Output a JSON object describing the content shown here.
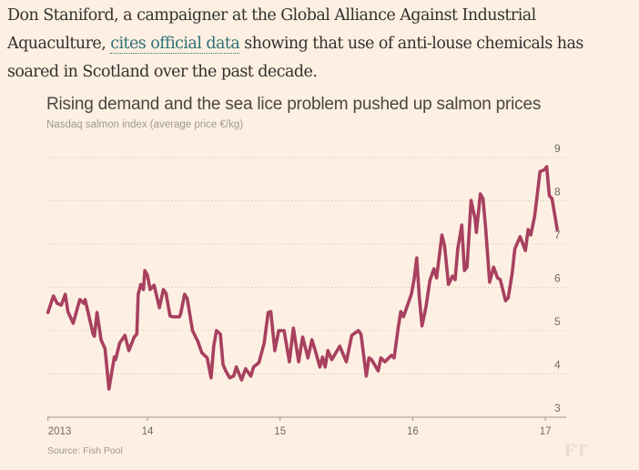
{
  "article": {
    "text_before": "Don Staniford, a campaigner at the Global Alliance Against Industrial Aquaculture, ",
    "link_text": "cites official data",
    "text_after": " showing that use of anti-louse chemicals has soared in Scotland over the past decade."
  },
  "colors": {
    "background": "#fdf0e2",
    "line": "#a8405f",
    "link": "#2e6e75",
    "grid": "#d9cfc3",
    "axis": "#9e958b"
  },
  "branding": {
    "logo": "FT"
  },
  "chart_data": {
    "type": "line",
    "title": "Rising demand and the sea lice problem pushed up salmon prices",
    "subtitle": "Nasdaq salmon index (average price €/kg)",
    "source": "Source: Fish Pool",
    "xlabel": "",
    "ylabel": "average price €/kg",
    "xlim": [
      2013.25,
      2017.16
    ],
    "ylim": [
      3,
      9
    ],
    "grid": true,
    "y_axis_side": "right",
    "y_ticks": [
      3,
      4,
      5,
      6,
      7,
      8,
      9
    ],
    "y_tick_labels": [
      "3",
      "4",
      "5",
      "6",
      "7",
      "8",
      "9"
    ],
    "x_ticks": [
      2013.25,
      2014,
      2015,
      2016,
      2017
    ],
    "x_tick_labels": [
      "2013",
      "14",
      "15",
      "16",
      "17"
    ],
    "series": [
      {
        "name": "Nasdaq salmon index",
        "x": [
          2013.25,
          2013.29,
          2013.32,
          2013.35,
          2013.38,
          2013.4,
          2013.44,
          2013.49,
          2013.52,
          2013.53,
          2013.59,
          2013.6,
          2013.62,
          2013.65,
          2013.68,
          2013.71,
          2013.75,
          2013.76,
          2013.79,
          2013.83,
          2013.86,
          2013.9,
          2013.92,
          2013.93,
          2013.95,
          2013.97,
          2013.98,
          2014.0,
          2014.02,
          2014.05,
          2014.09,
          2014.12,
          2014.14,
          2014.17,
          2014.19,
          2014.24,
          2014.25,
          2014.28,
          2014.3,
          2014.34,
          2014.38,
          2014.41,
          2014.45,
          2014.48,
          2014.5,
          2014.52,
          2014.55,
          2014.57,
          2014.59,
          2014.62,
          2014.65,
          2014.67,
          2014.71,
          2014.74,
          2014.78,
          2014.8,
          2014.84,
          2014.88,
          2014.91,
          2014.93,
          2014.96,
          2014.99,
          2015.03,
          2015.07,
          2015.1,
          2015.14,
          2015.17,
          2015.21,
          2015.24,
          2015.27,
          2015.3,
          2015.32,
          2015.34,
          2015.36,
          2015.39,
          2015.45,
          2015.5,
          2015.54,
          2015.59,
          2015.61,
          2015.65,
          2015.67,
          2015.69,
          2015.74,
          2015.76,
          2015.79,
          2015.84,
          2015.86,
          2015.89,
          2015.91,
          2015.93,
          2015.99,
          2016.01,
          2016.03,
          2016.05,
          2016.07,
          2016.1,
          2016.13,
          2016.16,
          2016.18,
          2016.22,
          2016.24,
          2016.27,
          2016.3,
          2016.32,
          2016.34,
          2016.37,
          2016.39,
          2016.41,
          2016.44,
          2016.47,
          2016.48,
          2016.51,
          2016.53,
          2016.55,
          2016.58,
          2016.61,
          2016.64,
          2016.66,
          2016.7,
          2016.72,
          2016.75,
          2016.77,
          2016.81,
          2016.85,
          2016.87,
          2016.89,
          2016.92,
          2016.96,
          2016.99,
          2017.01,
          2017.03,
          2017.05,
          2017.09
        ],
        "values": [
          5.42,
          5.8,
          5.63,
          5.59,
          5.84,
          5.44,
          5.17,
          5.72,
          5.63,
          5.72,
          4.92,
          4.87,
          5.42,
          4.79,
          4.58,
          3.65,
          4.39,
          4.33,
          4.71,
          4.89,
          4.54,
          4.85,
          4.92,
          5.84,
          6.07,
          5.95,
          6.39,
          6.28,
          5.95,
          6.05,
          5.53,
          5.95,
          5.86,
          5.34,
          5.32,
          5.32,
          5.38,
          5.84,
          5.74,
          5.0,
          4.75,
          4.49,
          4.37,
          3.91,
          4.64,
          5.0,
          4.92,
          4.22,
          4.07,
          3.91,
          3.95,
          4.16,
          3.86,
          4.12,
          3.95,
          4.16,
          4.26,
          4.71,
          5.42,
          5.44,
          4.54,
          5.0,
          5.0,
          4.28,
          5.06,
          4.28,
          4.85,
          4.37,
          4.79,
          4.49,
          4.16,
          4.39,
          4.16,
          4.54,
          4.33,
          4.64,
          4.28,
          4.89,
          5.0,
          4.92,
          3.95,
          4.37,
          4.33,
          4.07,
          4.37,
          4.28,
          4.43,
          4.37,
          5.06,
          5.44,
          5.32,
          5.84,
          6.18,
          6.68,
          5.76,
          5.11,
          5.55,
          6.16,
          6.43,
          6.22,
          7.21,
          6.96,
          6.07,
          6.26,
          6.18,
          6.89,
          7.44,
          6.39,
          6.47,
          8.01,
          7.59,
          7.27,
          8.16,
          8.05,
          7.38,
          6.12,
          6.47,
          6.22,
          6.18,
          5.69,
          5.76,
          6.33,
          6.89,
          7.17,
          6.85,
          7.34,
          7.21,
          7.65,
          8.68,
          8.71,
          8.79,
          8.12,
          8.05,
          7.34
        ]
      }
    ]
  }
}
